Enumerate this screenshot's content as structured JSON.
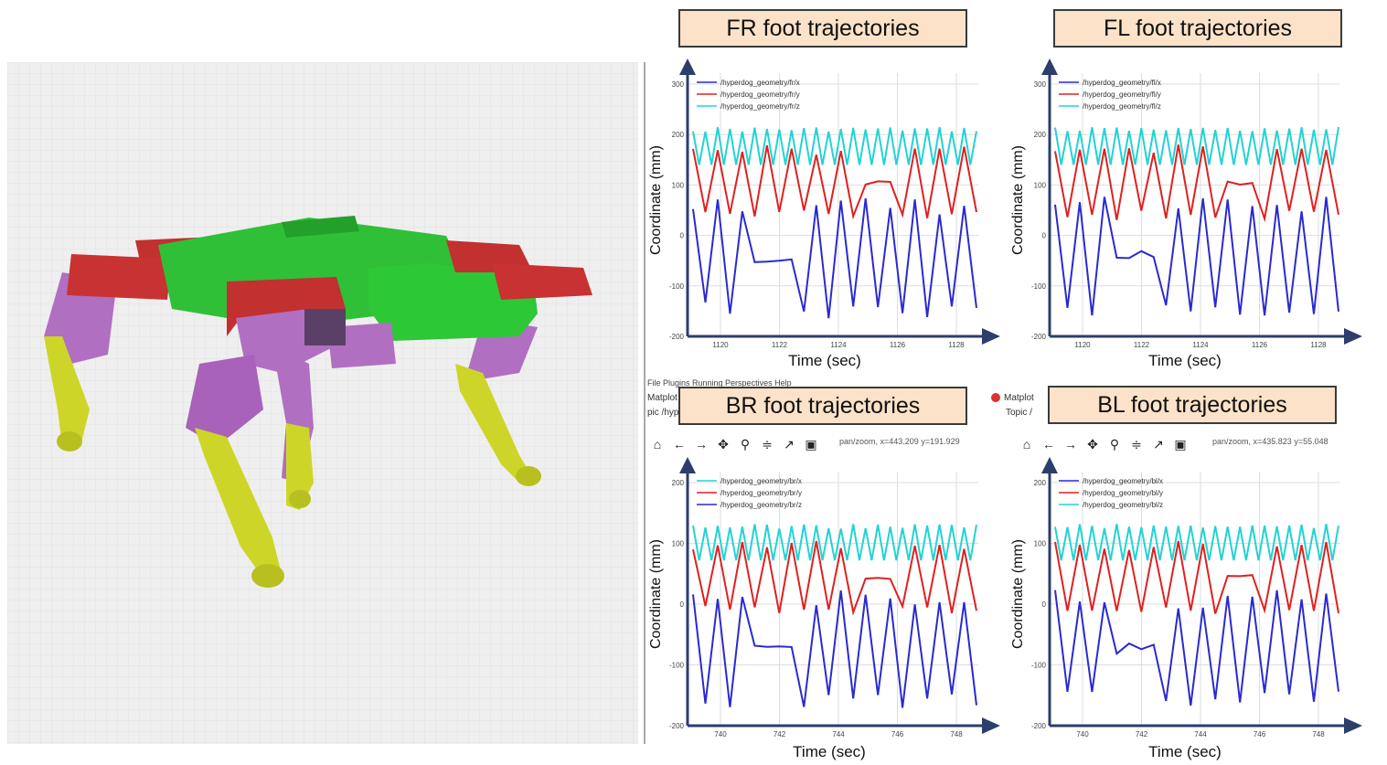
{
  "panels": [
    {
      "id": "fr",
      "title": "FR foot trajectories",
      "legend": [
        "/hyperdog_geometry/fr/x",
        "/hyperdog_geometry/fr/y",
        "/hyperdog_geometry/fr/z"
      ],
      "legend_colors": [
        "#2a2ad0",
        "#e02020",
        "#22d3d3"
      ],
      "xticks": [
        "1120",
        "1122",
        "1124",
        "1126",
        "1128"
      ],
      "yticks": [
        "300",
        "200",
        "100",
        "0",
        "-100",
        "-200"
      ],
      "ylabel": "Coordinate (mm)",
      "xlabel": "Time (sec)"
    },
    {
      "id": "fl",
      "title": "FL foot trajectories",
      "legend": [
        "/hyperdog_geometry/fl/x",
        "/hyperdog_geometry/fl/y",
        "/hyperdog_geometry/fl/z"
      ],
      "legend_colors": [
        "#2a2ad0",
        "#e02020",
        "#22d3d3"
      ],
      "xticks": [
        "1120",
        "1122",
        "1124",
        "1126",
        "1128"
      ],
      "yticks": [
        "300",
        "200",
        "100",
        "0",
        "-100",
        "-200"
      ],
      "ylabel": "Coordinate (mm)",
      "xlabel": "Time (sec)"
    },
    {
      "id": "br",
      "title": "BR foot trajectories",
      "legend": [
        "/hyperdog_geometry/br/x",
        "/hyperdog_geometry/br/y",
        "/hyperdog_geometry/br/z"
      ],
      "legend_colors": [
        "#22d3d3",
        "#e02020",
        "#2a2ad0"
      ],
      "xticks": [
        "740",
        "742",
        "744",
        "746",
        "748"
      ],
      "yticks": [
        "200",
        "100",
        "0",
        "-100",
        "-200"
      ],
      "ylabel": "Coordinate (mm)",
      "xlabel": "Time (sec)",
      "coords": "pan/zoom, x=443.209     y=191.929"
    },
    {
      "id": "bl",
      "title": "BL foot trajectories",
      "legend": [
        "/hyperdog_geometry/bl/x",
        "/hyperdog_geometry/bl/y",
        "/hyperdog_geometry/bl/z"
      ],
      "legend_colors": [
        "#2a2ad0",
        "#e02020",
        "#22d3d3"
      ],
      "xticks": [
        "740",
        "742",
        "744",
        "746",
        "748"
      ],
      "yticks": [
        "200",
        "100",
        "0",
        "-100",
        "-200"
      ],
      "ylabel": "Coordinate (mm)",
      "xlabel": "Time (sec)",
      "coords": "pan/zoom, x=435.823     y=55.048"
    }
  ],
  "window": {
    "menu": "File   Plugins   Running   Perspectives   Help",
    "left_title": "Matplot",
    "left_topic": "pic /hyp",
    "right_title": "Matplot",
    "right_topic": "Topic /"
  },
  "toolbar_icons": [
    "home-icon",
    "back-arrow-icon",
    "forward-arrow-icon",
    "pan-icon",
    "zoom-icon",
    "configure-subplots-icon",
    "edit-axis-icon",
    "save-icon"
  ]
}
